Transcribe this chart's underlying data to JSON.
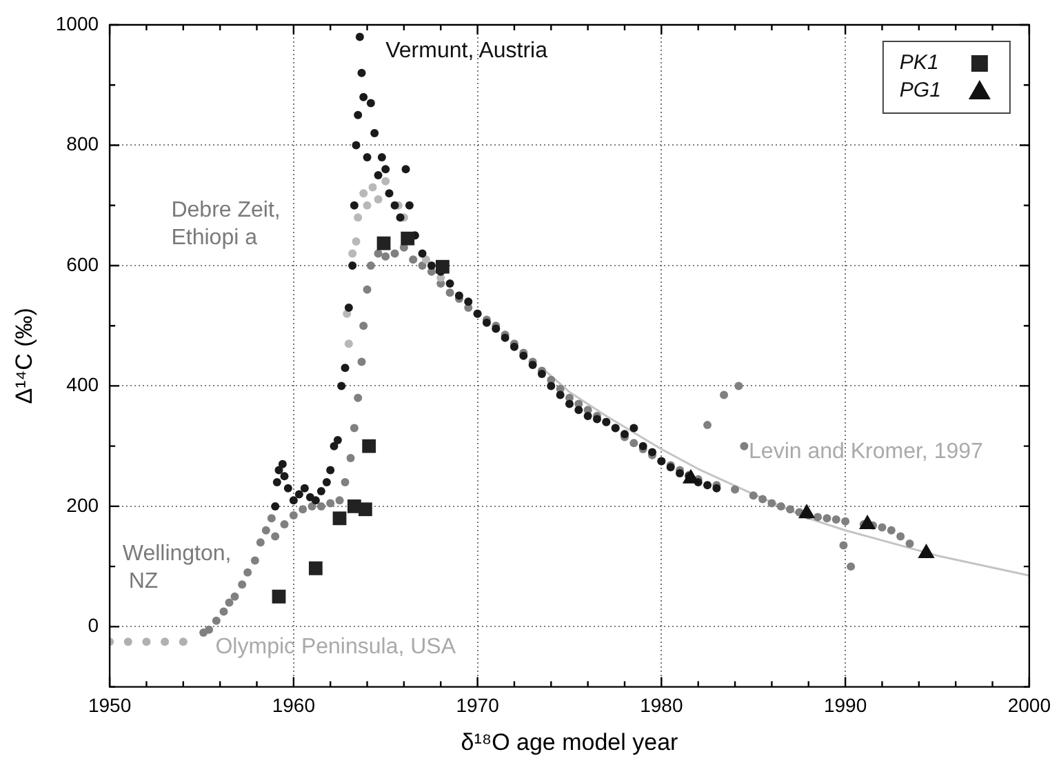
{
  "chart_data": {
    "type": "scatter",
    "xlabel": "δ¹⁸O age model year",
    "ylabel": "Δ¹⁴C (‰)",
    "xlim": [
      1950,
      2000
    ],
    "xticks": [
      1950,
      1960,
      1970,
      1980,
      1990,
      2000
    ],
    "ylim": [
      -100,
      1000
    ],
    "yticks": [
      0,
      200,
      400,
      600,
      800,
      1000
    ],
    "grid": true,
    "legend": "top right",
    "series": [
      {
        "type": "line",
        "color": "#c4c4c4",
        "marker": "none",
        "x": [
          1973.5,
          1975,
          1977,
          1980,
          1982,
          1985,
          1988,
          1990,
          1993,
          1995,
          2000
        ],
        "values": [
          430,
          390,
          350,
          295,
          262,
          220,
          180,
          160,
          135,
          118,
          85
        ]
      },
      {
        "color": "#b0b0b0",
        "marker": "circle",
        "x": [
          1950,
          1951,
          1952,
          1953,
          1954
        ],
        "values": [
          -25,
          -25,
          -25,
          -25,
          -25
        ]
      },
      {
        "color": "#808080",
        "marker": "circle",
        "x": [
          1955.1,
          1955.4,
          1955.8,
          1956.2,
          1956.5,
          1956.8,
          1957.2,
          1957.5,
          1957.9,
          1958.2,
          1958.5,
          1958.8,
          1959,
          1959.5,
          1960,
          1960.5,
          1961,
          1961.5,
          1962,
          1962.5,
          1962.8,
          1963.1,
          1963.3,
          1963.5,
          1963.7,
          1963.8,
          1964,
          1964.2,
          1964.6,
          1965,
          1965.5,
          1966,
          1966.5,
          1967,
          1967.5,
          1968,
          1968.5,
          1969,
          1969.5,
          1970,
          1970.5,
          1971,
          1971.5,
          1972,
          1972.5,
          1973,
          1973.5,
          1974,
          1974.5,
          1975,
          1975.5,
          1976,
          1976.5,
          1977,
          1977.5,
          1978,
          1978.5,
          1979,
          1979.5,
          1980,
          1980.5,
          1981,
          1981.5,
          1982,
          1982.5,
          1983,
          1983.4,
          1984,
          1984.2,
          1984.5,
          1985,
          1985.5,
          1986,
          1986.5,
          1987,
          1987.5,
          1988,
          1988.5,
          1989,
          1989.5,
          1989.9,
          1990,
          1990.3,
          1991,
          1991.5,
          1992,
          1992.5,
          1993,
          1993.5
        ],
        "values": [
          -10,
          -5,
          10,
          25,
          40,
          50,
          70,
          90,
          110,
          140,
          160,
          180,
          150,
          170,
          185,
          195,
          200,
          200,
          205,
          210,
          240,
          280,
          330,
          380,
          440,
          500,
          560,
          600,
          620,
          615,
          620,
          630,
          610,
          600,
          590,
          570,
          555,
          545,
          530,
          520,
          510,
          500,
          485,
          470,
          455,
          440,
          425,
          410,
          395,
          380,
          370,
          360,
          350,
          340,
          330,
          315,
          305,
          295,
          285,
          275,
          268,
          260,
          252,
          245,
          335,
          235,
          385,
          228,
          400,
          300,
          218,
          212,
          205,
          200,
          195,
          190,
          185,
          182,
          180,
          178,
          135,
          175,
          100,
          170,
          168,
          165,
          160,
          150,
          138
        ]
      },
      {
        "color": "#b8b8b8",
        "marker": "circle",
        "x": [
          1962.9,
          1963,
          1963.2,
          1963.4,
          1963.5,
          1963.8,
          1964,
          1964.3,
          1964.6,
          1965,
          1965.7,
          1966,
          1967.2,
          1968
        ],
        "values": [
          520,
          470,
          620,
          640,
          680,
          720,
          700,
          730,
          710,
          740,
          700,
          680,
          610,
          580
        ]
      },
      {
        "color": "#1a1a1a",
        "marker": "circle",
        "x": [
          1959,
          1959.1,
          1959.2,
          1959.4,
          1959.5,
          1959.7,
          1960,
          1960.3,
          1960.6,
          1960.9,
          1961.2,
          1961.5,
          1961.8,
          1962,
          1962.2,
          1962.4,
          1962.6,
          1962.8,
          1963,
          1963.2,
          1963.3,
          1963.4,
          1963.5,
          1963.6,
          1963.7,
          1963.8,
          1964,
          1964.2,
          1964.4,
          1964.6,
          1964.8,
          1965,
          1965.2,
          1965.5,
          1965.8,
          1966.1,
          1966.3,
          1966.6,
          1967,
          1967.5,
          1968,
          1968.5,
          1969,
          1969.5,
          1970,
          1970.5,
          1971,
          1971.5,
          1972,
          1972.5,
          1973,
          1973.5,
          1974,
          1974.5,
          1975,
          1975.5,
          1976,
          1976.5,
          1977,
          1977.5,
          1978,
          1978.5,
          1979,
          1979.5,
          1980,
          1980.5,
          1981,
          1981.5,
          1982,
          1982.5,
          1983
        ],
        "values": [
          200,
          240,
          260,
          270,
          250,
          230,
          210,
          220,
          230,
          215,
          210,
          225,
          240,
          260,
          300,
          310,
          400,
          430,
          530,
          600,
          700,
          800,
          850,
          980,
          920,
          880,
          780,
          870,
          820,
          750,
          780,
          760,
          720,
          700,
          680,
          760,
          700,
          650,
          620,
          600,
          590,
          570,
          550,
          540,
          520,
          505,
          495,
          480,
          465,
          450,
          435,
          420,
          400,
          385,
          370,
          360,
          350,
          345,
          340,
          330,
          320,
          330,
          300,
          290,
          275,
          265,
          255,
          250,
          240,
          235,
          230
        ]
      },
      {
        "name": "PK1",
        "color": "#222222",
        "marker": "square",
        "x": [
          1959.2,
          1961.2,
          1962.5,
          1963.3,
          1963.9,
          1964.1,
          1964.9,
          1966.2,
          1968.1
        ],
        "values": [
          50,
          97,
          180,
          200,
          195,
          300,
          637,
          645,
          598
        ]
      },
      {
        "name": "PG1",
        "color": "#111111",
        "marker": "triangle",
        "x": [
          1981.6,
          1987.9,
          1991.2,
          1994.4
        ],
        "values": [
          246,
          188,
          170,
          122
        ]
      }
    ],
    "annotations": [
      "Vermunt, Austria",
      "Debre Zeit,\nEthiopi a",
      "Wellington,\n NZ",
      "Olympic Peninsula, USA",
      "Levin and Kromer, 1997"
    ]
  }
}
